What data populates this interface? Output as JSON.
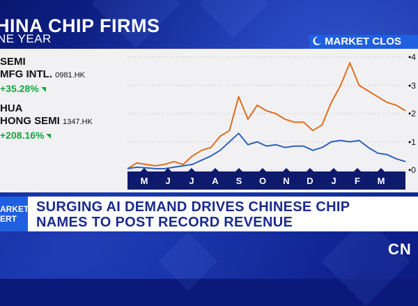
{
  "header": {
    "title": "HINA CHIP FIRMS",
    "subtitle": "NE YEAR"
  },
  "badge": {
    "label": "MARKET CLOS",
    "icon": "moon-icon"
  },
  "stocks": [
    {
      "line1": "SEMI",
      "line2": "MFG INTL.",
      "ticker": "0981.HK",
      "change": "+35.28%",
      "color": "#2f5fbd"
    },
    {
      "line1": "HUA",
      "line2": "HONG SEMI",
      "ticker": "1347.HK",
      "change": "+208.16%",
      "color": "#e06c1c"
    }
  ],
  "chart_data": {
    "type": "line",
    "x": [
      "Apr",
      "May",
      "May",
      "Jun",
      "Jun",
      "Jul",
      "Jul",
      "Aug",
      "Aug",
      "Sep",
      "Sep",
      "Sep",
      "Oct",
      "Oct",
      "Oct",
      "Oct",
      "Nov",
      "Nov",
      "Nov",
      "Dec",
      "Dec",
      "Jan",
      "Jan",
      "Jan",
      "Feb",
      "Feb",
      "Feb",
      "Mar",
      "Mar",
      "Mar",
      "Apr"
    ],
    "months": [
      "M",
      "J",
      "J",
      "A",
      "S",
      "O",
      "N",
      "D",
      "J",
      "F",
      "M"
    ],
    "yticks": [
      "0",
      "1",
      "2",
      "3",
      "4"
    ],
    "ylim": [
      0,
      4
    ],
    "series": [
      {
        "name": "HUA HONG SEMI",
        "color": "#e06c1c",
        "values": [
          0.05,
          0.25,
          0.2,
          0.15,
          0.2,
          0.3,
          0.2,
          0.5,
          0.7,
          0.8,
          1.2,
          1.4,
          2.6,
          1.8,
          2.3,
          2.1,
          2.0,
          1.8,
          1.7,
          1.7,
          1.4,
          1.6,
          2.4,
          3.0,
          3.8,
          3.0,
          2.8,
          2.6,
          2.4,
          2.3,
          2.1
        ]
      },
      {
        "name": "SEMI MFG INTL.",
        "color": "#2f5fbd",
        "values": [
          0.05,
          0.1,
          0.08,
          0.05,
          0.05,
          0.1,
          0.15,
          0.2,
          0.35,
          0.5,
          0.7,
          1.0,
          1.3,
          0.9,
          1.0,
          0.85,
          0.9,
          0.8,
          0.85,
          0.85,
          0.7,
          0.8,
          1.0,
          1.05,
          1.0,
          1.05,
          0.8,
          0.6,
          0.55,
          0.4,
          0.3
        ]
      }
    ]
  },
  "ticker": {
    "tag": "ARKET\nERT",
    "headline1": "SURGING AI DEMAND DRIVES CHINESE CHIP",
    "headline2": "NAMES TO POST RECORD REVENUE"
  },
  "brand": {
    "logo": "CN"
  }
}
